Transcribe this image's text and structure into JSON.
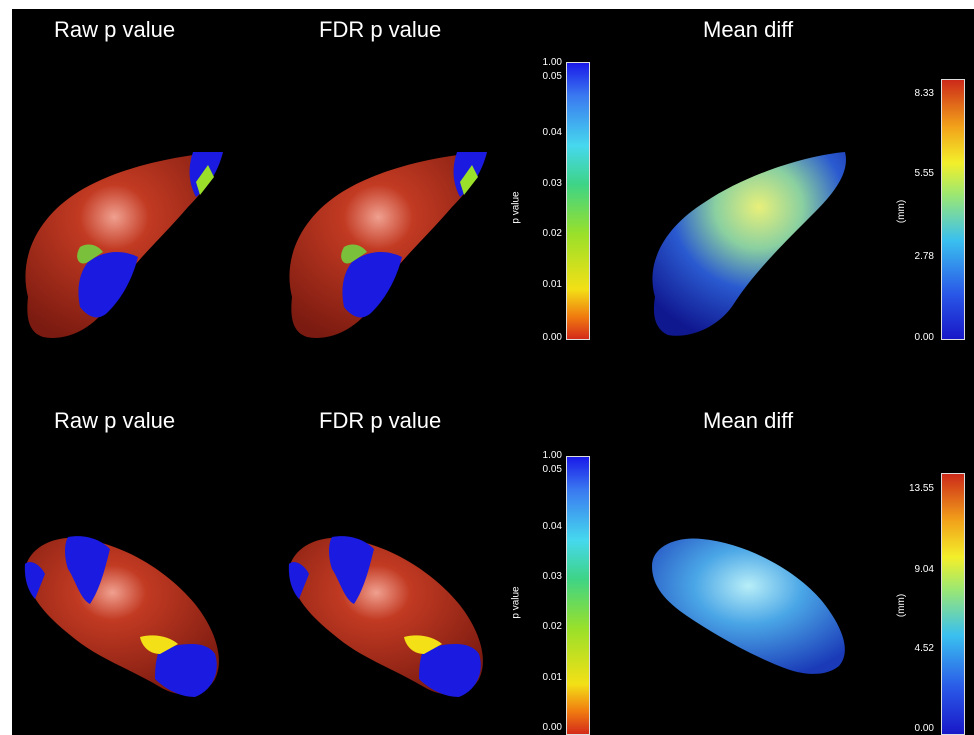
{
  "rows": [
    {
      "raw_title": "Raw p value",
      "fdr_title": "FDR p value",
      "mean_title": "Mean diff",
      "pbar": {
        "label": "p value",
        "ticks": [
          "1.00",
          "0.05",
          "0.04",
          "0.03",
          "0.02",
          "0.01",
          "0.00"
        ]
      },
      "mmbar": {
        "label": "(mm)",
        "ticks": [
          "8.33",
          "5.55",
          "2.78",
          "0.00"
        ]
      }
    },
    {
      "raw_title": "Raw p value",
      "fdr_title": "FDR p value",
      "mean_title": "Mean diff",
      "pbar": {
        "label": "p value",
        "ticks": [
          "1.00",
          "0.05",
          "0.04",
          "0.03",
          "0.02",
          "0.01",
          "0.00"
        ]
      },
      "mmbar": {
        "label": "(mm)",
        "ticks": [
          "13.55",
          "9.04",
          "4.52",
          "0.00"
        ]
      }
    }
  ],
  "colors": {
    "background": "#000000",
    "text": "#ffffff",
    "surface_red": "#b3301c",
    "surface_blue": "#1a1ae0"
  }
}
